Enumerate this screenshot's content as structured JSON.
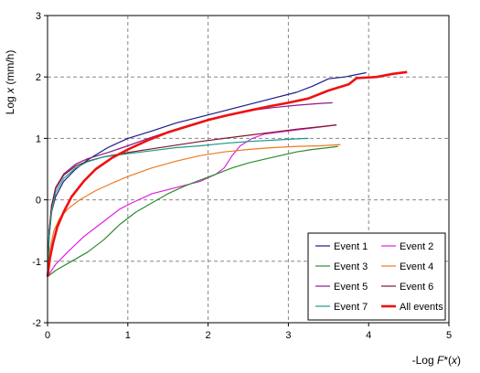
{
  "chart_data": {
    "type": "line",
    "xlabel": {
      "prefix": "-Log ",
      "italic": "F",
      "suffix": "*(",
      "italic2": "x",
      "end": ")"
    },
    "ylabel": {
      "prefix": "Log ",
      "italic": "x",
      "suffix": " (mm/h)"
    },
    "xlim": [
      0,
      5
    ],
    "ylim": [
      -2,
      3
    ],
    "x_ticks": [
      "0",
      "1",
      "2",
      "3",
      "4",
      "5"
    ],
    "y_ticks": [
      "-2",
      "-1",
      "0",
      "1",
      "2",
      "3"
    ],
    "grid": true,
    "legend_position": "bottom-right",
    "series": [
      {
        "name": "Event 1",
        "color": "#1a1a8c",
        "width": 1.2,
        "points": [
          [
            0,
            -1.25
          ],
          [
            0.02,
            -0.6
          ],
          [
            0.05,
            -0.2
          ],
          [
            0.1,
            0.05
          ],
          [
            0.2,
            0.3
          ],
          [
            0.35,
            0.5
          ],
          [
            0.5,
            0.65
          ],
          [
            0.75,
            0.85
          ],
          [
            1.0,
            1.0
          ],
          [
            1.3,
            1.12
          ],
          [
            1.6,
            1.25
          ],
          [
            1.9,
            1.35
          ],
          [
            2.2,
            1.45
          ],
          [
            2.5,
            1.55
          ],
          [
            2.8,
            1.65
          ],
          [
            3.1,
            1.75
          ],
          [
            3.3,
            1.85
          ],
          [
            3.5,
            1.97
          ],
          [
            3.7,
            2.0
          ],
          [
            3.97,
            2.07
          ]
        ]
      },
      {
        "name": "Event 2",
        "color": "#e020e0",
        "width": 1.2,
        "points": [
          [
            0,
            -1.25
          ],
          [
            0.1,
            -1.05
          ],
          [
            0.25,
            -0.85
          ],
          [
            0.45,
            -0.6
          ],
          [
            0.7,
            -0.35
          ],
          [
            0.9,
            -0.15
          ],
          [
            1.05,
            -0.05
          ],
          [
            1.3,
            0.1
          ],
          [
            1.6,
            0.2
          ],
          [
            1.9,
            0.3
          ],
          [
            2.1,
            0.42
          ],
          [
            2.2,
            0.52
          ],
          [
            2.3,
            0.72
          ],
          [
            2.4,
            0.88
          ],
          [
            2.55,
            1.0
          ],
          [
            2.7,
            1.07
          ],
          [
            3.0,
            1.12
          ],
          [
            3.3,
            1.17
          ],
          [
            3.6,
            1.22
          ]
        ]
      },
      {
        "name": "Event 3",
        "color": "#2e8b2e",
        "width": 1.2,
        "points": [
          [
            0,
            -1.25
          ],
          [
            0.1,
            -1.15
          ],
          [
            0.3,
            -1.0
          ],
          [
            0.5,
            -0.85
          ],
          [
            0.7,
            -0.65
          ],
          [
            0.9,
            -0.4
          ],
          [
            1.1,
            -0.2
          ],
          [
            1.3,
            -0.05
          ],
          [
            1.5,
            0.1
          ],
          [
            1.7,
            0.22
          ],
          [
            1.9,
            0.32
          ],
          [
            2.1,
            0.42
          ],
          [
            2.3,
            0.52
          ],
          [
            2.5,
            0.6
          ],
          [
            2.7,
            0.66
          ],
          [
            2.9,
            0.72
          ],
          [
            3.1,
            0.78
          ],
          [
            3.3,
            0.82
          ],
          [
            3.5,
            0.85
          ],
          [
            3.62,
            0.87
          ]
        ]
      },
      {
        "name": "Event 4",
        "color": "#f07820",
        "width": 1.2,
        "points": [
          [
            0,
            -1.25
          ],
          [
            0.03,
            -0.8
          ],
          [
            0.08,
            -0.5
          ],
          [
            0.15,
            -0.3
          ],
          [
            0.25,
            -0.15
          ],
          [
            0.4,
            0.0
          ],
          [
            0.6,
            0.15
          ],
          [
            0.8,
            0.27
          ],
          [
            1.0,
            0.38
          ],
          [
            1.3,
            0.52
          ],
          [
            1.6,
            0.63
          ],
          [
            1.9,
            0.72
          ],
          [
            2.2,
            0.78
          ],
          [
            2.5,
            0.82
          ],
          [
            2.8,
            0.85
          ],
          [
            3.1,
            0.87
          ],
          [
            3.4,
            0.88
          ],
          [
            3.65,
            0.9
          ]
        ]
      },
      {
        "name": "Event 5",
        "color": "#8b1a8b",
        "width": 1.2,
        "points": [
          [
            0,
            -1.25
          ],
          [
            0.02,
            -0.5
          ],
          [
            0.05,
            -0.1
          ],
          [
            0.1,
            0.2
          ],
          [
            0.2,
            0.42
          ],
          [
            0.35,
            0.58
          ],
          [
            0.5,
            0.67
          ],
          [
            0.75,
            0.77
          ],
          [
            1.0,
            0.88
          ],
          [
            1.3,
            1.02
          ],
          [
            1.6,
            1.15
          ],
          [
            1.9,
            1.27
          ],
          [
            2.2,
            1.37
          ],
          [
            2.5,
            1.45
          ],
          [
            2.8,
            1.5
          ],
          [
            3.1,
            1.54
          ],
          [
            3.4,
            1.57
          ],
          [
            3.55,
            1.58
          ]
        ]
      },
      {
        "name": "Event 6",
        "color": "#7a1a2a",
        "width": 1.2,
        "points": [
          [
            0,
            -1.25
          ],
          [
            0.02,
            -0.5
          ],
          [
            0.05,
            -0.1
          ],
          [
            0.1,
            0.18
          ],
          [
            0.2,
            0.4
          ],
          [
            0.35,
            0.55
          ],
          [
            0.5,
            0.63
          ],
          [
            0.7,
            0.7
          ],
          [
            1.0,
            0.77
          ],
          [
            1.3,
            0.83
          ],
          [
            1.6,
            0.89
          ],
          [
            1.9,
            0.95
          ],
          [
            2.2,
            1.0
          ],
          [
            2.5,
            1.05
          ],
          [
            2.8,
            1.1
          ],
          [
            3.1,
            1.15
          ],
          [
            3.4,
            1.19
          ],
          [
            3.6,
            1.22
          ]
        ]
      },
      {
        "name": "Event 7",
        "color": "#1f9a8a",
        "width": 1.2,
        "points": [
          [
            0,
            -1.25
          ],
          [
            0.02,
            -0.6
          ],
          [
            0.05,
            -0.2
          ],
          [
            0.1,
            0.12
          ],
          [
            0.2,
            0.35
          ],
          [
            0.35,
            0.52
          ],
          [
            0.5,
            0.62
          ],
          [
            0.7,
            0.7
          ],
          [
            1.0,
            0.75
          ],
          [
            1.3,
            0.8
          ],
          [
            1.6,
            0.85
          ],
          [
            1.9,
            0.88
          ],
          [
            2.2,
            0.92
          ],
          [
            2.5,
            0.95
          ],
          [
            2.8,
            0.97
          ],
          [
            3.05,
            0.99
          ],
          [
            3.25,
            1.0
          ]
        ]
      },
      {
        "name": "All events",
        "color": "#ee1111",
        "width": 2.6,
        "points": [
          [
            0,
            -1.25
          ],
          [
            0.03,
            -0.95
          ],
          [
            0.07,
            -0.7
          ],
          [
            0.12,
            -0.45
          ],
          [
            0.2,
            -0.2
          ],
          [
            0.3,
            0.05
          ],
          [
            0.45,
            0.3
          ],
          [
            0.6,
            0.5
          ],
          [
            0.8,
            0.68
          ],
          [
            1.0,
            0.82
          ],
          [
            1.25,
            0.97
          ],
          [
            1.5,
            1.1
          ],
          [
            1.75,
            1.2
          ],
          [
            2.0,
            1.3
          ],
          [
            2.25,
            1.38
          ],
          [
            2.5,
            1.45
          ],
          [
            2.75,
            1.52
          ],
          [
            3.0,
            1.58
          ],
          [
            3.25,
            1.65
          ],
          [
            3.5,
            1.78
          ],
          [
            3.75,
            1.88
          ],
          [
            3.85,
            1.98
          ],
          [
            4.1,
            2.0
          ],
          [
            4.3,
            2.05
          ],
          [
            4.48,
            2.08
          ]
        ]
      }
    ]
  }
}
